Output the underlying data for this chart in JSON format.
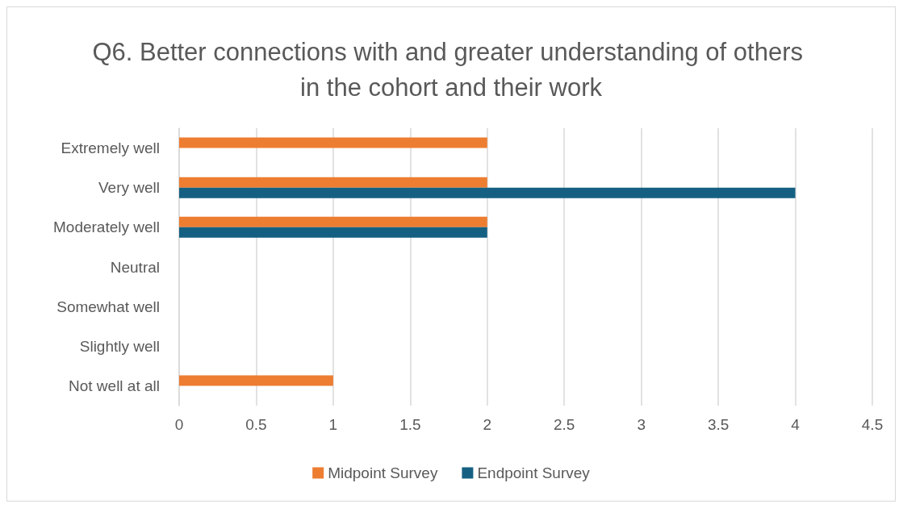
{
  "chart_data": {
    "type": "bar",
    "orientation": "horizontal",
    "title": "Q6. Better connections with and greater understanding of others in the cohort and their work",
    "categories": [
      "Extremely well",
      "Very well",
      "Moderately well",
      "Neutral",
      "Somewhat well",
      "Slightly well",
      "Not well at all"
    ],
    "series": [
      {
        "name": "Midpoint Survey",
        "color": "#ed7d31",
        "values": [
          2,
          2,
          2,
          0,
          0,
          0,
          1
        ]
      },
      {
        "name": "Endpoint Survey",
        "color": "#156082",
        "values": [
          0,
          4,
          2,
          0,
          0,
          0,
          0
        ]
      }
    ],
    "xlim": [
      0,
      4.5
    ],
    "xticks": [
      0,
      0.5,
      1,
      1.5,
      2,
      2.5,
      3,
      3.5,
      4,
      4.5
    ],
    "grid": "x",
    "legend": "bottom"
  }
}
